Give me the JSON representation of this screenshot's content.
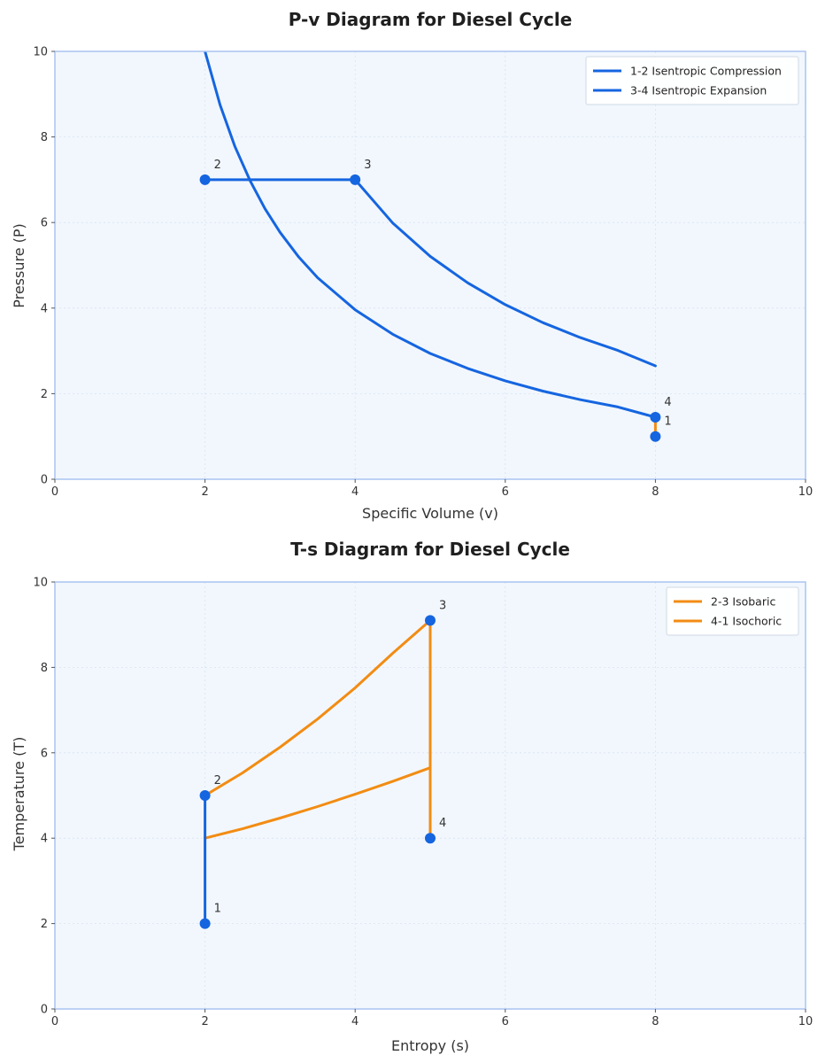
{
  "chart_data": [
    {
      "type": "line",
      "title": "P-v Diagram for Diesel Cycle",
      "xlabel": "Specific Volume (v)",
      "ylabel": "Pressure (P)",
      "xlim": [
        0,
        10
      ],
      "ylim": [
        0,
        10
      ],
      "xticks": [
        0,
        2,
        4,
        6,
        8,
        10
      ],
      "yticks": [
        0,
        2,
        4,
        6,
        8,
        10
      ],
      "grid": true,
      "legend_position": "top-right",
      "colors": {
        "blue": "#1565e0",
        "orange": "#f28c13",
        "plot_bg": "#f2f7fd",
        "frame": "#a9c4f2"
      },
      "series": [
        {
          "name": "1-2 Isentropic Compression",
          "color": "#1565e0",
          "kind": "curve",
          "x": [
            2.0,
            2.2,
            2.4,
            2.6,
            2.8,
            3.0,
            3.25,
            3.5,
            4.0,
            4.5,
            5.0,
            5.5,
            6.0,
            6.5,
            7.0,
            7.5,
            8.0
          ],
          "y": [
            10.0,
            8.75,
            7.77,
            6.98,
            6.32,
            5.77,
            5.19,
            4.71,
            3.96,
            3.39,
            2.94,
            2.59,
            2.3,
            2.06,
            1.86,
            1.69,
            1.45
          ]
        },
        {
          "name": "3-4 Isentropic Expansion",
          "color": "#1565e0",
          "kind": "curve",
          "x": [
            4.0,
            4.5,
            5.0,
            5.5,
            6.0,
            6.5,
            7.0,
            7.5,
            8.0
          ],
          "y": [
            7.0,
            5.99,
            5.21,
            4.59,
            4.08,
            3.66,
            3.31,
            3.01,
            2.65
          ]
        },
        {
          "name": "",
          "color": "#1565e0",
          "kind": "segment",
          "x": [
            2,
            4
          ],
          "y": [
            7,
            7
          ]
        },
        {
          "name": "",
          "color": "#f28c13",
          "kind": "segment",
          "x": [
            8,
            8
          ],
          "y": [
            1.45,
            1.0
          ]
        }
      ],
      "points": [
        {
          "label": "2",
          "x": 2,
          "y": 7,
          "dx": 10,
          "dy": -13
        },
        {
          "label": "3",
          "x": 4,
          "y": 7,
          "dx": 10,
          "dy": -13
        },
        {
          "label": "4",
          "x": 8,
          "y": 1.45,
          "dx": 10,
          "dy": -13
        },
        {
          "label": "1",
          "x": 8,
          "y": 1.0,
          "dx": 10,
          "dy": -13
        }
      ]
    },
    {
      "type": "line",
      "title": "T-s Diagram for Diesel Cycle",
      "xlabel": "Entropy (s)",
      "ylabel": "Temperature (T)",
      "xlim": [
        0,
        10
      ],
      "ylim": [
        0,
        10
      ],
      "xticks": [
        0,
        2,
        4,
        6,
        8,
        10
      ],
      "yticks": [
        0,
        2,
        4,
        6,
        8,
        10
      ],
      "grid": true,
      "legend_position": "top-right",
      "colors": {
        "blue": "#1565e0",
        "orange": "#f28c13",
        "plot_bg": "#f2f7fd",
        "frame": "#a9c4f2"
      },
      "series": [
        {
          "name": "2-3 Isobaric",
          "color": "#f28c13",
          "kind": "curve",
          "x": [
            2.0,
            2.5,
            3.0,
            3.5,
            4.0,
            4.5,
            5.0
          ],
          "y": [
            5.0,
            5.53,
            6.13,
            6.79,
            7.52,
            8.33,
            9.1
          ]
        },
        {
          "name": "4-1 Isochoric",
          "color": "#f28c13",
          "kind": "curve",
          "x": [
            2.0,
            2.5,
            3.0,
            3.5,
            4.0,
            4.5,
            5.0
          ],
          "y": [
            4.0,
            4.22,
            4.47,
            4.74,
            5.03,
            5.33,
            5.65
          ]
        },
        {
          "name": "",
          "color": "#1565e0",
          "kind": "segment",
          "x": [
            2,
            2
          ],
          "y": [
            2,
            5
          ]
        },
        {
          "name": "",
          "color": "#f28c13",
          "kind": "segment",
          "x": [
            5,
            5
          ],
          "y": [
            9.1,
            4
          ]
        }
      ],
      "points": [
        {
          "label": "1",
          "x": 2,
          "y": 2,
          "dx": 10,
          "dy": -13
        },
        {
          "label": "2",
          "x": 2,
          "y": 5,
          "dx": 10,
          "dy": -13
        },
        {
          "label": "3",
          "x": 5,
          "y": 9.1,
          "dx": 10,
          "dy": -13
        },
        {
          "label": "4",
          "x": 5,
          "y": 4,
          "dx": 10,
          "dy": -13
        }
      ]
    }
  ]
}
